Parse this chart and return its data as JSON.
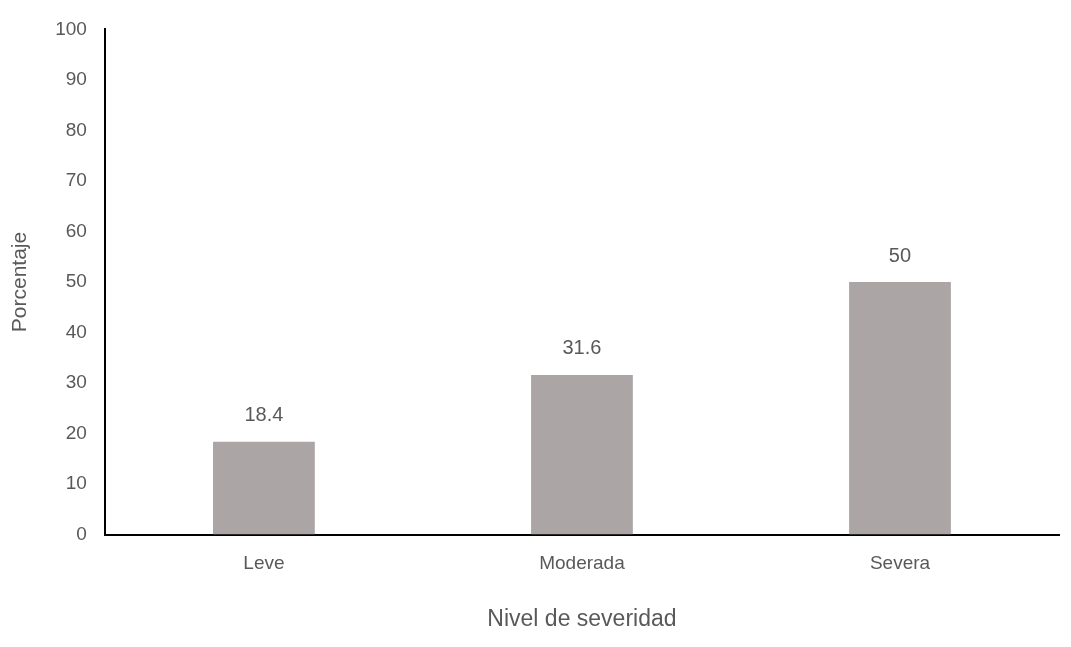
{
  "chart_data": {
    "type": "bar",
    "xlabel": "Nivel de severidad",
    "ylabel": "Porcentaje",
    "categories": [
      "Leve",
      "Moderada",
      "Severa"
    ],
    "values": [
      18.4,
      31.6,
      50
    ],
    "color": "#aba6a5",
    "ylim": [
      0,
      100
    ],
    "yticks": [
      0,
      10,
      20,
      30,
      40,
      50,
      60,
      70,
      80,
      90,
      100
    ],
    "grid": false,
    "legend": false,
    "data_labels": true
  }
}
